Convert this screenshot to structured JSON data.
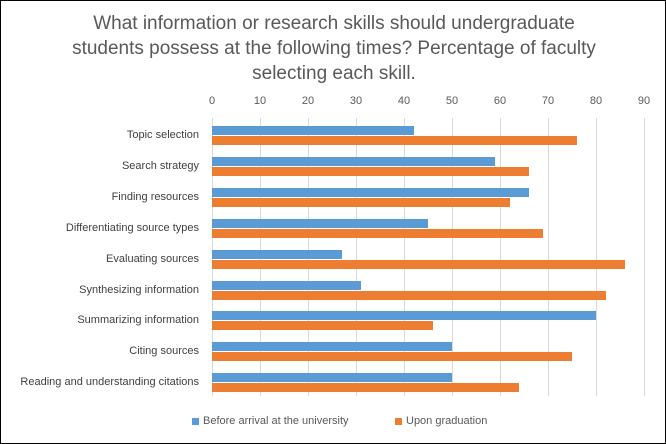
{
  "chart_data": {
    "type": "bar",
    "orientation": "horizontal",
    "title": "What information or research skills should undergraduate students possess at the following times? Percentage of faculty selecting each skill.",
    "title_lines": [
      "What information or research skills should undergraduate",
      "students possess at the following times? Percentage of faculty",
      "selecting each skill."
    ],
    "xlabel": "",
    "ylabel": "",
    "xlim": [
      0,
      90
    ],
    "x_ticks": [
      "0",
      "10",
      "20",
      "30",
      "40",
      "50",
      "60",
      "70",
      "80",
      "90"
    ],
    "grid": true,
    "legend_position": "bottom",
    "categories": [
      "Topic selection",
      "Search strategy",
      "Finding resources",
      "Differentiating source types",
      "Evaluating sources",
      "Synthesizing information",
      "Summarizing information",
      "Citing sources",
      "Reading and understanding citations"
    ],
    "series": [
      {
        "name": "Before arrival at the university",
        "color": "#5b9bd5",
        "values": [
          42,
          59,
          66,
          45,
          27,
          31,
          80,
          50,
          50
        ]
      },
      {
        "name": "Upon graduation",
        "color": "#ed7d31",
        "values": [
          76,
          66,
          62,
          69,
          86,
          82,
          46,
          75,
          64
        ]
      }
    ]
  }
}
